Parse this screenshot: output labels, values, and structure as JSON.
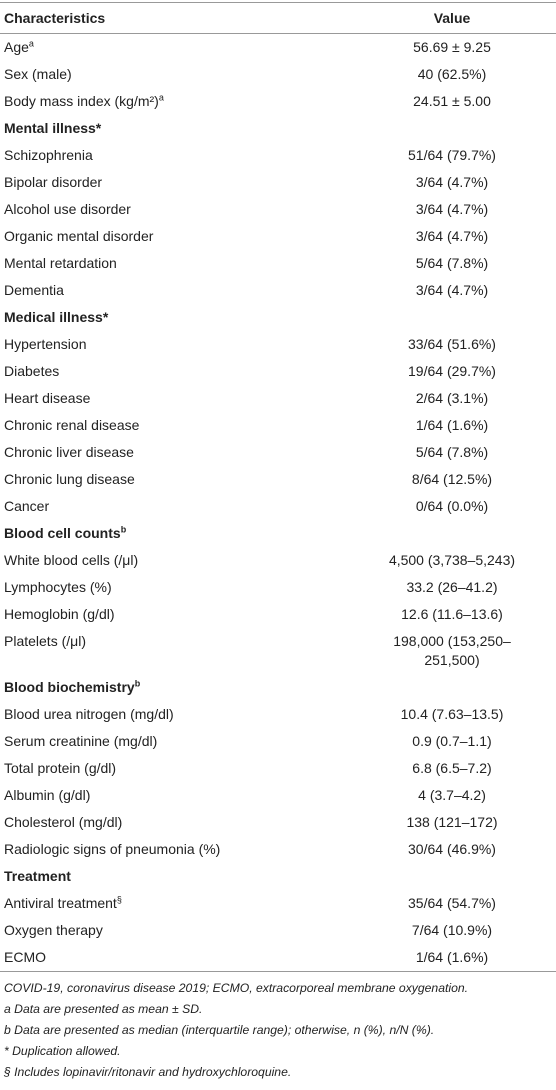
{
  "table": {
    "header": [
      "Characteristics",
      "Value"
    ],
    "rows": [
      {
        "label": "Age",
        "sup": "a",
        "value": "56.69 ± 9.25"
      },
      {
        "label": "Sex (male)",
        "value": "40 (62.5%)"
      },
      {
        "label": "Body mass index (kg/m²)",
        "sup": "a",
        "value": "24.51 ± 5.00"
      },
      {
        "section": "Mental illness*"
      },
      {
        "label": "Schizophrenia",
        "value": "51/64 (79.7%)"
      },
      {
        "label": "Bipolar disorder",
        "value": "3/64 (4.7%)"
      },
      {
        "label": "Alcohol use disorder",
        "value": "3/64 (4.7%)"
      },
      {
        "label": "Organic mental disorder",
        "value": "3/64 (4.7%)"
      },
      {
        "label": "Mental retardation",
        "value": "5/64 (7.8%)"
      },
      {
        "label": "Dementia",
        "value": "3/64 (4.7%)"
      },
      {
        "section": "Medical illness*"
      },
      {
        "label": "Hypertension",
        "value": "33/64 (51.6%)"
      },
      {
        "label": "Diabetes",
        "value": "19/64 (29.7%)"
      },
      {
        "label": "Heart disease",
        "value": "2/64 (3.1%)"
      },
      {
        "label": "Chronic renal disease",
        "value": "1/64 (1.6%)"
      },
      {
        "label": "Chronic liver disease",
        "value": "5/64 (7.8%)"
      },
      {
        "label": "Chronic lung disease",
        "value": "8/64 (12.5%)"
      },
      {
        "label": "Cancer",
        "value": "0/64 (0.0%)"
      },
      {
        "section": "Blood cell counts",
        "sup": "b"
      },
      {
        "label": "White blood cells (/μl)",
        "value": "4,500 (3,738–5,243)"
      },
      {
        "label": "Lymphocytes (%)",
        "value": "33.2 (26–41.2)"
      },
      {
        "label": "Hemoglobin (g/dl)",
        "value": "12.6 (11.6–13.6)"
      },
      {
        "label": "Platelets (/μl)",
        "value": "198,000 (153,250–251,500)"
      },
      {
        "section": "Blood biochemistry",
        "sup": "b"
      },
      {
        "label": "Blood urea nitrogen (mg/dl)",
        "value": "10.4 (7.63–13.5)"
      },
      {
        "label": "Serum creatinine (mg/dl)",
        "value": "0.9 (0.7–1.1)"
      },
      {
        "label": "Total protein (g/dl)",
        "value": "6.8 (6.5–7.2)"
      },
      {
        "label": "Albumin (g/dl)",
        "value": "4 (3.7–4.2)"
      },
      {
        "label": "Cholesterol (mg/dl)",
        "value": "138 (121–172)"
      },
      {
        "label": "Radiologic signs of pneumonia (%)",
        "value": "30/64 (46.9%)"
      },
      {
        "section": "Treatment"
      },
      {
        "label": "Antiviral treatment",
        "sup": "§",
        "value": "35/64 (54.7%)"
      },
      {
        "label": "Oxygen therapy",
        "value": "7/64 (10.9%)"
      },
      {
        "label": "ECMO",
        "value": "1/64 (1.6%)"
      }
    ]
  },
  "footnotes": [
    "COVID-19, coronavirus disease 2019; ECMO, extracorporeal membrane oxygenation.",
    "a Data are presented as mean ± SD.",
    "b Data are presented as median (interquartile range); otherwise, n (%), n/N (%).",
    "* Duplication allowed.",
    "§ Includes lopinavir/ritonavir and hydroxychloroquine."
  ]
}
